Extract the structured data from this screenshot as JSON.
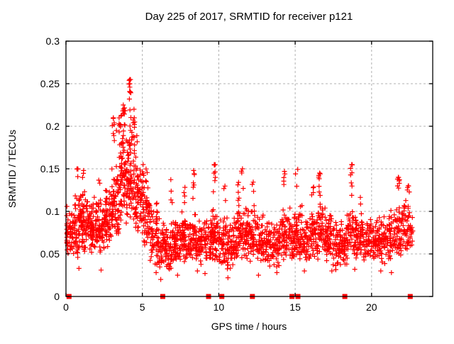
{
  "chart_data": {
    "type": "scatter",
    "title": "Day 225 of 2017, SRMTID for receiver p121",
    "xlabel": "GPS time / hours",
    "ylabel": "SRMTID / TECUs",
    "xlim": [
      0,
      24
    ],
    "ylim": [
      0,
      0.3
    ],
    "x_ticks": [
      0,
      5,
      10,
      15,
      20
    ],
    "x_tick_labels": [
      "0",
      "5",
      "10",
      "15",
      "20"
    ],
    "y_ticks": [
      0,
      0.05,
      0.1,
      0.15,
      0.2,
      0.25,
      0.3
    ],
    "y_tick_labels": [
      "0",
      "0.05",
      "0.1",
      "0.15",
      "0.2",
      "0.25",
      "0.3"
    ],
    "grid": "dashed at every labeled tick",
    "legend": "none",
    "series": [
      {
        "name": "SRMTID samples",
        "marker": "plus",
        "color": "#ff0000"
      },
      {
        "name": "baseline flags",
        "marker": "filled-square",
        "color": "#ff0000"
      }
    ],
    "baseline_square_x": [
      0.2,
      6.33,
      9.33,
      10.2,
      12.2,
      14.79,
      15.18,
      18.25,
      22.53
    ],
    "notable_points": [
      [
        4.18,
        0.255
      ],
      [
        4.18,
        0.25
      ],
      [
        4.18,
        0.246
      ],
      [
        4.2,
        0.24
      ],
      [
        4.15,
        0.232
      ],
      [
        3.75,
        0.225
      ],
      [
        3.72,
        0.218
      ],
      [
        3.6,
        0.212
      ],
      [
        3.1,
        0.21
      ],
      [
        3.15,
        0.202
      ],
      [
        3.3,
        0.195
      ],
      [
        4.45,
        0.22
      ],
      [
        4.5,
        0.205
      ],
      [
        9.7,
        0.155
      ],
      [
        5.05,
        0.155
      ],
      [
        18.7,
        0.155
      ],
      [
        11.55,
        0.15
      ],
      [
        0.75,
        0.15
      ],
      [
        1.15,
        0.148
      ],
      [
        8.35,
        0.148
      ],
      [
        14.3,
        0.147
      ],
      [
        16.6,
        0.145
      ],
      [
        21.75,
        0.14
      ],
      [
        22.4,
        0.13
      ],
      [
        0.05,
        0.066
      ],
      [
        0.05,
        0.079
      ],
      [
        0.05,
        0.095
      ],
      [
        5.9,
        0.028
      ],
      [
        7.3,
        0.025
      ],
      [
        8.6,
        0.03
      ],
      [
        10.6,
        0.022
      ],
      [
        13.8,
        0.028
      ],
      [
        17.4,
        0.03
      ],
      [
        20.6,
        0.03
      ],
      [
        2.3,
        0.031
      ],
      [
        0.85,
        0.033
      ],
      [
        12.6,
        0.025
      ],
      [
        15.6,
        0.03
      ],
      [
        18.9,
        0.032
      ],
      [
        21.3,
        0.028
      ],
      [
        6.2,
        0.02
      ],
      [
        9.1,
        0.027
      ]
    ],
    "density_profile": [
      [
        0.0,
        0.045,
        0.115,
        48
      ],
      [
        0.5,
        0.045,
        0.125,
        62
      ],
      [
        1.0,
        0.05,
        0.13,
        66
      ],
      [
        1.5,
        0.05,
        0.12,
        64
      ],
      [
        2.0,
        0.05,
        0.115,
        60
      ],
      [
        2.5,
        0.055,
        0.135,
        62
      ],
      [
        3.0,
        0.06,
        0.17,
        66
      ],
      [
        3.5,
        0.085,
        0.205,
        74
      ],
      [
        4.0,
        0.09,
        0.2,
        74
      ],
      [
        4.5,
        0.07,
        0.17,
        62
      ],
      [
        5.0,
        0.055,
        0.14,
        56
      ],
      [
        5.5,
        0.035,
        0.115,
        52
      ],
      [
        6.0,
        0.03,
        0.095,
        52
      ],
      [
        6.5,
        0.03,
        0.09,
        54
      ],
      [
        7.0,
        0.035,
        0.095,
        54
      ],
      [
        7.5,
        0.04,
        0.105,
        56
      ],
      [
        8.0,
        0.04,
        0.1,
        54
      ],
      [
        8.5,
        0.035,
        0.095,
        50
      ],
      [
        9.0,
        0.04,
        0.1,
        50
      ],
      [
        9.5,
        0.04,
        0.11,
        52
      ],
      [
        10.0,
        0.035,
        0.1,
        50
      ],
      [
        10.5,
        0.03,
        0.095,
        50
      ],
      [
        11.0,
        0.04,
        0.105,
        50
      ],
      [
        11.5,
        0.04,
        0.11,
        50
      ],
      [
        12.0,
        0.04,
        0.105,
        50
      ],
      [
        12.5,
        0.04,
        0.1,
        46
      ],
      [
        13.0,
        0.035,
        0.1,
        46
      ],
      [
        13.5,
        0.03,
        0.095,
        46
      ],
      [
        14.0,
        0.04,
        0.105,
        50
      ],
      [
        14.5,
        0.04,
        0.11,
        50
      ],
      [
        15.0,
        0.04,
        0.11,
        50
      ],
      [
        15.5,
        0.04,
        0.105,
        46
      ],
      [
        16.0,
        0.04,
        0.11,
        50
      ],
      [
        16.5,
        0.045,
        0.115,
        50
      ],
      [
        17.0,
        0.035,
        0.1,
        50
      ],
      [
        17.5,
        0.03,
        0.095,
        50
      ],
      [
        18.0,
        0.035,
        0.1,
        50
      ],
      [
        18.5,
        0.04,
        0.11,
        50
      ],
      [
        19.0,
        0.04,
        0.105,
        46
      ],
      [
        19.5,
        0.035,
        0.1,
        46
      ],
      [
        20.0,
        0.04,
        0.1,
        46
      ],
      [
        20.5,
        0.035,
        0.1,
        46
      ],
      [
        21.0,
        0.04,
        0.105,
        46
      ],
      [
        21.5,
        0.045,
        0.11,
        50
      ],
      [
        22.0,
        0.05,
        0.12,
        44
      ],
      [
        22.5,
        0.05,
        0.105,
        14,
        0.2
      ]
    ],
    "spike_columns": [
      [
        3.1,
        0.21,
        6
      ],
      [
        3.55,
        0.215,
        8
      ],
      [
        3.8,
        0.222,
        8
      ],
      [
        4.18,
        0.255,
        10
      ],
      [
        4.45,
        0.215,
        6
      ],
      [
        4.6,
        0.19,
        5
      ],
      [
        5.05,
        0.155,
        5
      ],
      [
        5.3,
        0.15,
        4
      ],
      [
        6.9,
        0.138,
        4
      ],
      [
        7.8,
        0.13,
        4
      ],
      [
        8.35,
        0.148,
        6
      ],
      [
        9.7,
        0.155,
        7
      ],
      [
        10.4,
        0.13,
        3
      ],
      [
        11.3,
        0.135,
        6
      ],
      [
        11.55,
        0.148,
        3
      ],
      [
        12.25,
        0.135,
        4
      ],
      [
        14.3,
        0.147,
        4
      ],
      [
        15.1,
        0.15,
        3
      ],
      [
        16.15,
        0.13,
        4
      ],
      [
        16.6,
        0.145,
        7
      ],
      [
        18.7,
        0.155,
        8
      ],
      [
        19.3,
        0.12,
        3
      ],
      [
        21.75,
        0.14,
        7
      ],
      [
        22.4,
        0.13,
        5
      ],
      [
        0.75,
        0.15,
        3
      ],
      [
        1.15,
        0.148,
        4
      ],
      [
        2.2,
        0.14,
        3
      ]
    ]
  },
  "colors": {
    "marker": "#ff0000",
    "grid": "#b0b0b0",
    "axis": "#000000",
    "text": "#000000",
    "background": "#ffffff"
  }
}
